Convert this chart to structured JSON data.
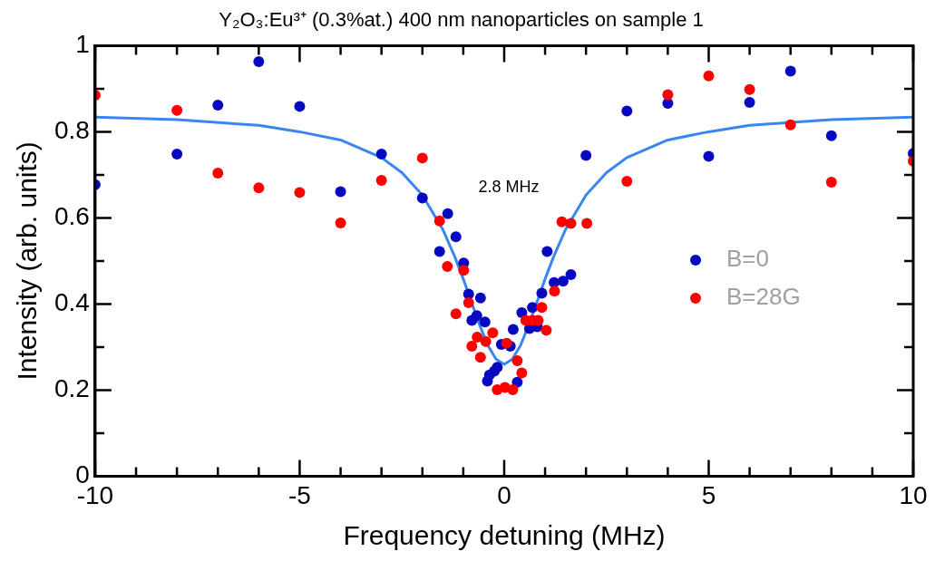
{
  "chart_data": {
    "type": "scatter",
    "title": "Y₂O₃:Eu³⁺ (0.3%at.) 400 nm nanoparticles on sample 1",
    "xlabel": "Frequency detuning (MHz)",
    "ylabel": "Intensity (arb. units)",
    "xlim": [
      -10,
      10
    ],
    "ylim": [
      0,
      1
    ],
    "xticks": [
      -10,
      {
        "value": -9,
        "label": null
      },
      {
        "value": -8,
        "label": null
      },
      {
        "value": -7,
        "label": null
      },
      {
        "value": -6,
        "label": null
      },
      -5,
      {
        "value": -4,
        "label": null
      },
      {
        "value": -3,
        "label": null
      },
      {
        "value": -2,
        "label": null
      },
      {
        "value": -1,
        "label": null
      },
      0,
      {
        "value": 1,
        "label": null
      },
      {
        "value": 2,
        "label": null
      },
      {
        "value": 3,
        "label": null
      },
      {
        "value": 4,
        "label": null
      },
      5,
      {
        "value": 6,
        "label": null
      },
      {
        "value": 7,
        "label": null
      },
      {
        "value": 8,
        "label": null
      },
      {
        "value": 9,
        "label": null
      },
      10
    ],
    "yticks": [
      0,
      {
        "value": 0.1,
        "label": null
      },
      0.2,
      {
        "value": 0.3,
        "label": null
      },
      0.4,
      {
        "value": 0.5,
        "label": null
      },
      0.6,
      {
        "value": 0.7,
        "label": null
      },
      0.8,
      {
        "value": 0.9,
        "label": null
      },
      1
    ],
    "grid": false,
    "legend": "right",
    "marker": "circle",
    "annotations": [
      "2.8 MHz"
    ],
    "series": [
      {
        "name": "B=0",
        "color": "#0808c0",
        "x": [
          -10,
          -8,
          -7,
          -6,
          -5,
          -4,
          -3,
          -2,
          -1.58,
          -1.38,
          -1.18,
          -0.99,
          -0.87,
          -0.58,
          -0.67,
          -0.79,
          -0.47,
          -0.07,
          0.15,
          0.22,
          0.43,
          0.69,
          0.62,
          0.81,
          0.92,
          1.05,
          1.22,
          1.44,
          1.63,
          -0.17,
          -0.24,
          -0.36,
          -0.41,
          0.32,
          2,
          3,
          4,
          5,
          6,
          7,
          8,
          10
        ],
        "values": [
          0.677,
          0.748,
          0.862,
          0.963,
          0.859,
          0.661,
          0.748,
          0.646,
          0.522,
          0.61,
          0.556,
          0.495,
          0.423,
          0.414,
          0.373,
          0.362,
          0.358,
          0.306,
          0.302,
          0.341,
          0.38,
          0.392,
          0.343,
          0.347,
          0.425,
          0.522,
          0.45,
          0.453,
          0.468,
          0.253,
          0.244,
          0.235,
          0.221,
          0.218,
          0.745,
          0.848,
          0.866,
          0.743,
          0.868,
          0.941,
          0.791,
          0.75
        ]
      },
      {
        "name": "B=28G",
        "color": "#ff0000",
        "x": [
          -10,
          -8,
          -7,
          -6,
          -5,
          -4,
          -3,
          -2,
          -1.58,
          -1.39,
          -0.99,
          -1.18,
          -0.87,
          -0.66,
          -0.79,
          -0.45,
          -0.28,
          -0.58,
          0.06,
          0.32,
          0.43,
          -0.17,
          0.02,
          0.21,
          0.53,
          0.69,
          0.83,
          1.03,
          0.92,
          1.23,
          1.41,
          1.63,
          2.02,
          3,
          4,
          5,
          6,
          7,
          8,
          10
        ],
        "values": [
          0.885,
          0.85,
          0.704,
          0.67,
          0.659,
          0.588,
          0.687,
          0.739,
          0.593,
          0.487,
          0.478,
          0.377,
          0.403,
          0.323,
          0.302,
          0.313,
          0.333,
          0.276,
          0.309,
          0.268,
          0.24,
          0.201,
          0.206,
          0.201,
          0.362,
          0.362,
          0.362,
          0.339,
          0.392,
          0.43,
          0.591,
          0.587,
          0.587,
          0.685,
          0.886,
          0.93,
          0.898,
          0.816,
          0.683,
          0.732
        ]
      },
      {
        "type": "line",
        "color": "#3a86f0",
        "marker": "none",
        "x": [
          -10,
          -8,
          -6,
          -5,
          -4,
          -3,
          -2.5,
          -2,
          -1.5,
          -1.2,
          -1,
          -0.8,
          -0.6,
          -0.4,
          -0.2,
          0,
          0.2,
          0.4,
          0.6,
          0.8,
          1,
          1.2,
          1.5,
          2,
          2.5,
          3,
          4,
          5,
          6,
          8,
          10
        ],
        "values": [
          0.834,
          0.828,
          0.815,
          0.8,
          0.781,
          0.74,
          0.705,
          0.653,
          0.573,
          0.508,
          0.458,
          0.404,
          0.351,
          0.304,
          0.272,
          0.26,
          0.272,
          0.304,
          0.351,
          0.404,
          0.458,
          0.508,
          0.573,
          0.653,
          0.705,
          0.74,
          0.781,
          0.8,
          0.815,
          0.828,
          0.834
        ]
      }
    ]
  }
}
